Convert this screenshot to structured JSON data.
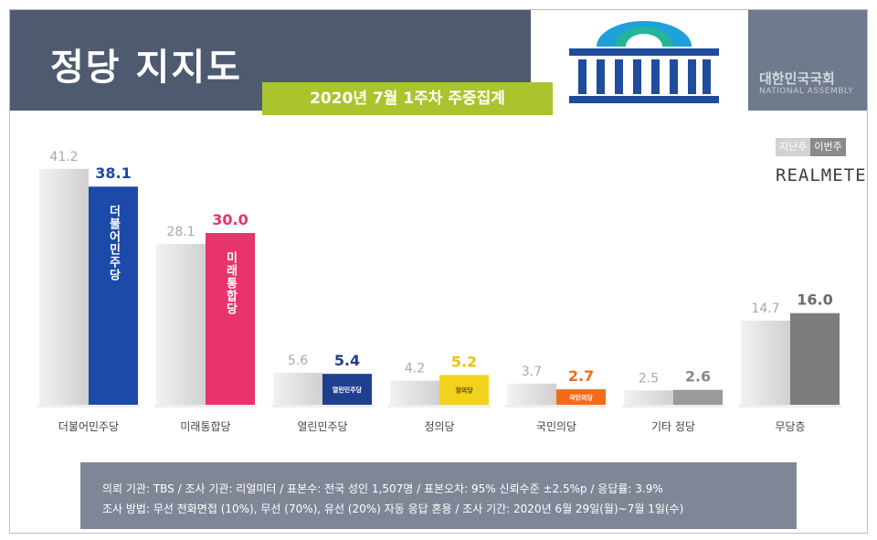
{
  "header": {
    "title": "정당 지지도",
    "subtitle": "2020년 7월 1주차 주중집계",
    "assembly_kr": "대한민국국회",
    "assembly_en": "NATIONAL ASSEMBLY"
  },
  "legend": {
    "prev": "지난주",
    "current": "이번주"
  },
  "brand": "REALMETER",
  "colors": {
    "header_bg": "#4d5a70",
    "subtitle_bg": "#a9c42c",
    "prev_bar": "#dcdcdc",
    "democratic": "#1c4aa8",
    "future_united": "#e8336b",
    "open_democratic": "#1f3f8f",
    "justice": "#f2d21a",
    "peoples": "#f26b1d",
    "other": "#9a9a9a",
    "undecided": "#7c7c7c"
  },
  "chart_data": {
    "type": "bar",
    "categories": [
      "더불어민주당",
      "미래통합당",
      "열린민주당",
      "정의당",
      "국민의당",
      "기타 정당",
      "무당층"
    ],
    "series": [
      {
        "name": "지난주",
        "values": [
          41.2,
          28.1,
          5.6,
          4.2,
          3.7,
          2.5,
          14.7
        ]
      },
      {
        "name": "이번주",
        "values": [
          38.1,
          30.0,
          5.4,
          5.2,
          2.7,
          2.6,
          16.0
        ]
      }
    ],
    "value_labels": {
      "prev": [
        "41.2",
        "28.1",
        "5.6",
        "4.2",
        "3.7",
        "2.5",
        "14.7"
      ],
      "current": [
        "38.1",
        "30.0",
        "5.4",
        "5.2",
        "2.7",
        "2.6",
        "16.0"
      ]
    },
    "bar_labels": [
      "더불어민주당",
      "미래통합당",
      "열린민주당",
      "정의당",
      "국민의당",
      "",
      ""
    ],
    "current_colors": [
      "#1c4aa8",
      "#e8336b",
      "#1f3f8f",
      "#f2d21a",
      "#f26b1d",
      "#9a9a9a",
      "#7c7c7c"
    ],
    "current_label_colors": [
      "#1c4aa8",
      "#e8336b",
      "#1f3f8f",
      "#e8c20a",
      "#f26b1d",
      "#8a8a8a",
      "#6b6b6b"
    ],
    "ylim": [
      0,
      45
    ],
    "legend_position": "top-right",
    "grid": false
  },
  "footer": {
    "line1": "의뢰 기관: TBS / 조사 기관: 리얼미터 / 표본수: 전국 성인 1,507명 / 표본오차: 95% 신뢰수준 ±2.5%p / 응답률: 3.9%",
    "line2": "조사 방법: 무선 전화면접 (10%), 무선 (70%), 유선 (20%) 자동 응답 혼용 / 조사 기간: 2020년 6월 29일(월)~7월 1일(수)"
  }
}
